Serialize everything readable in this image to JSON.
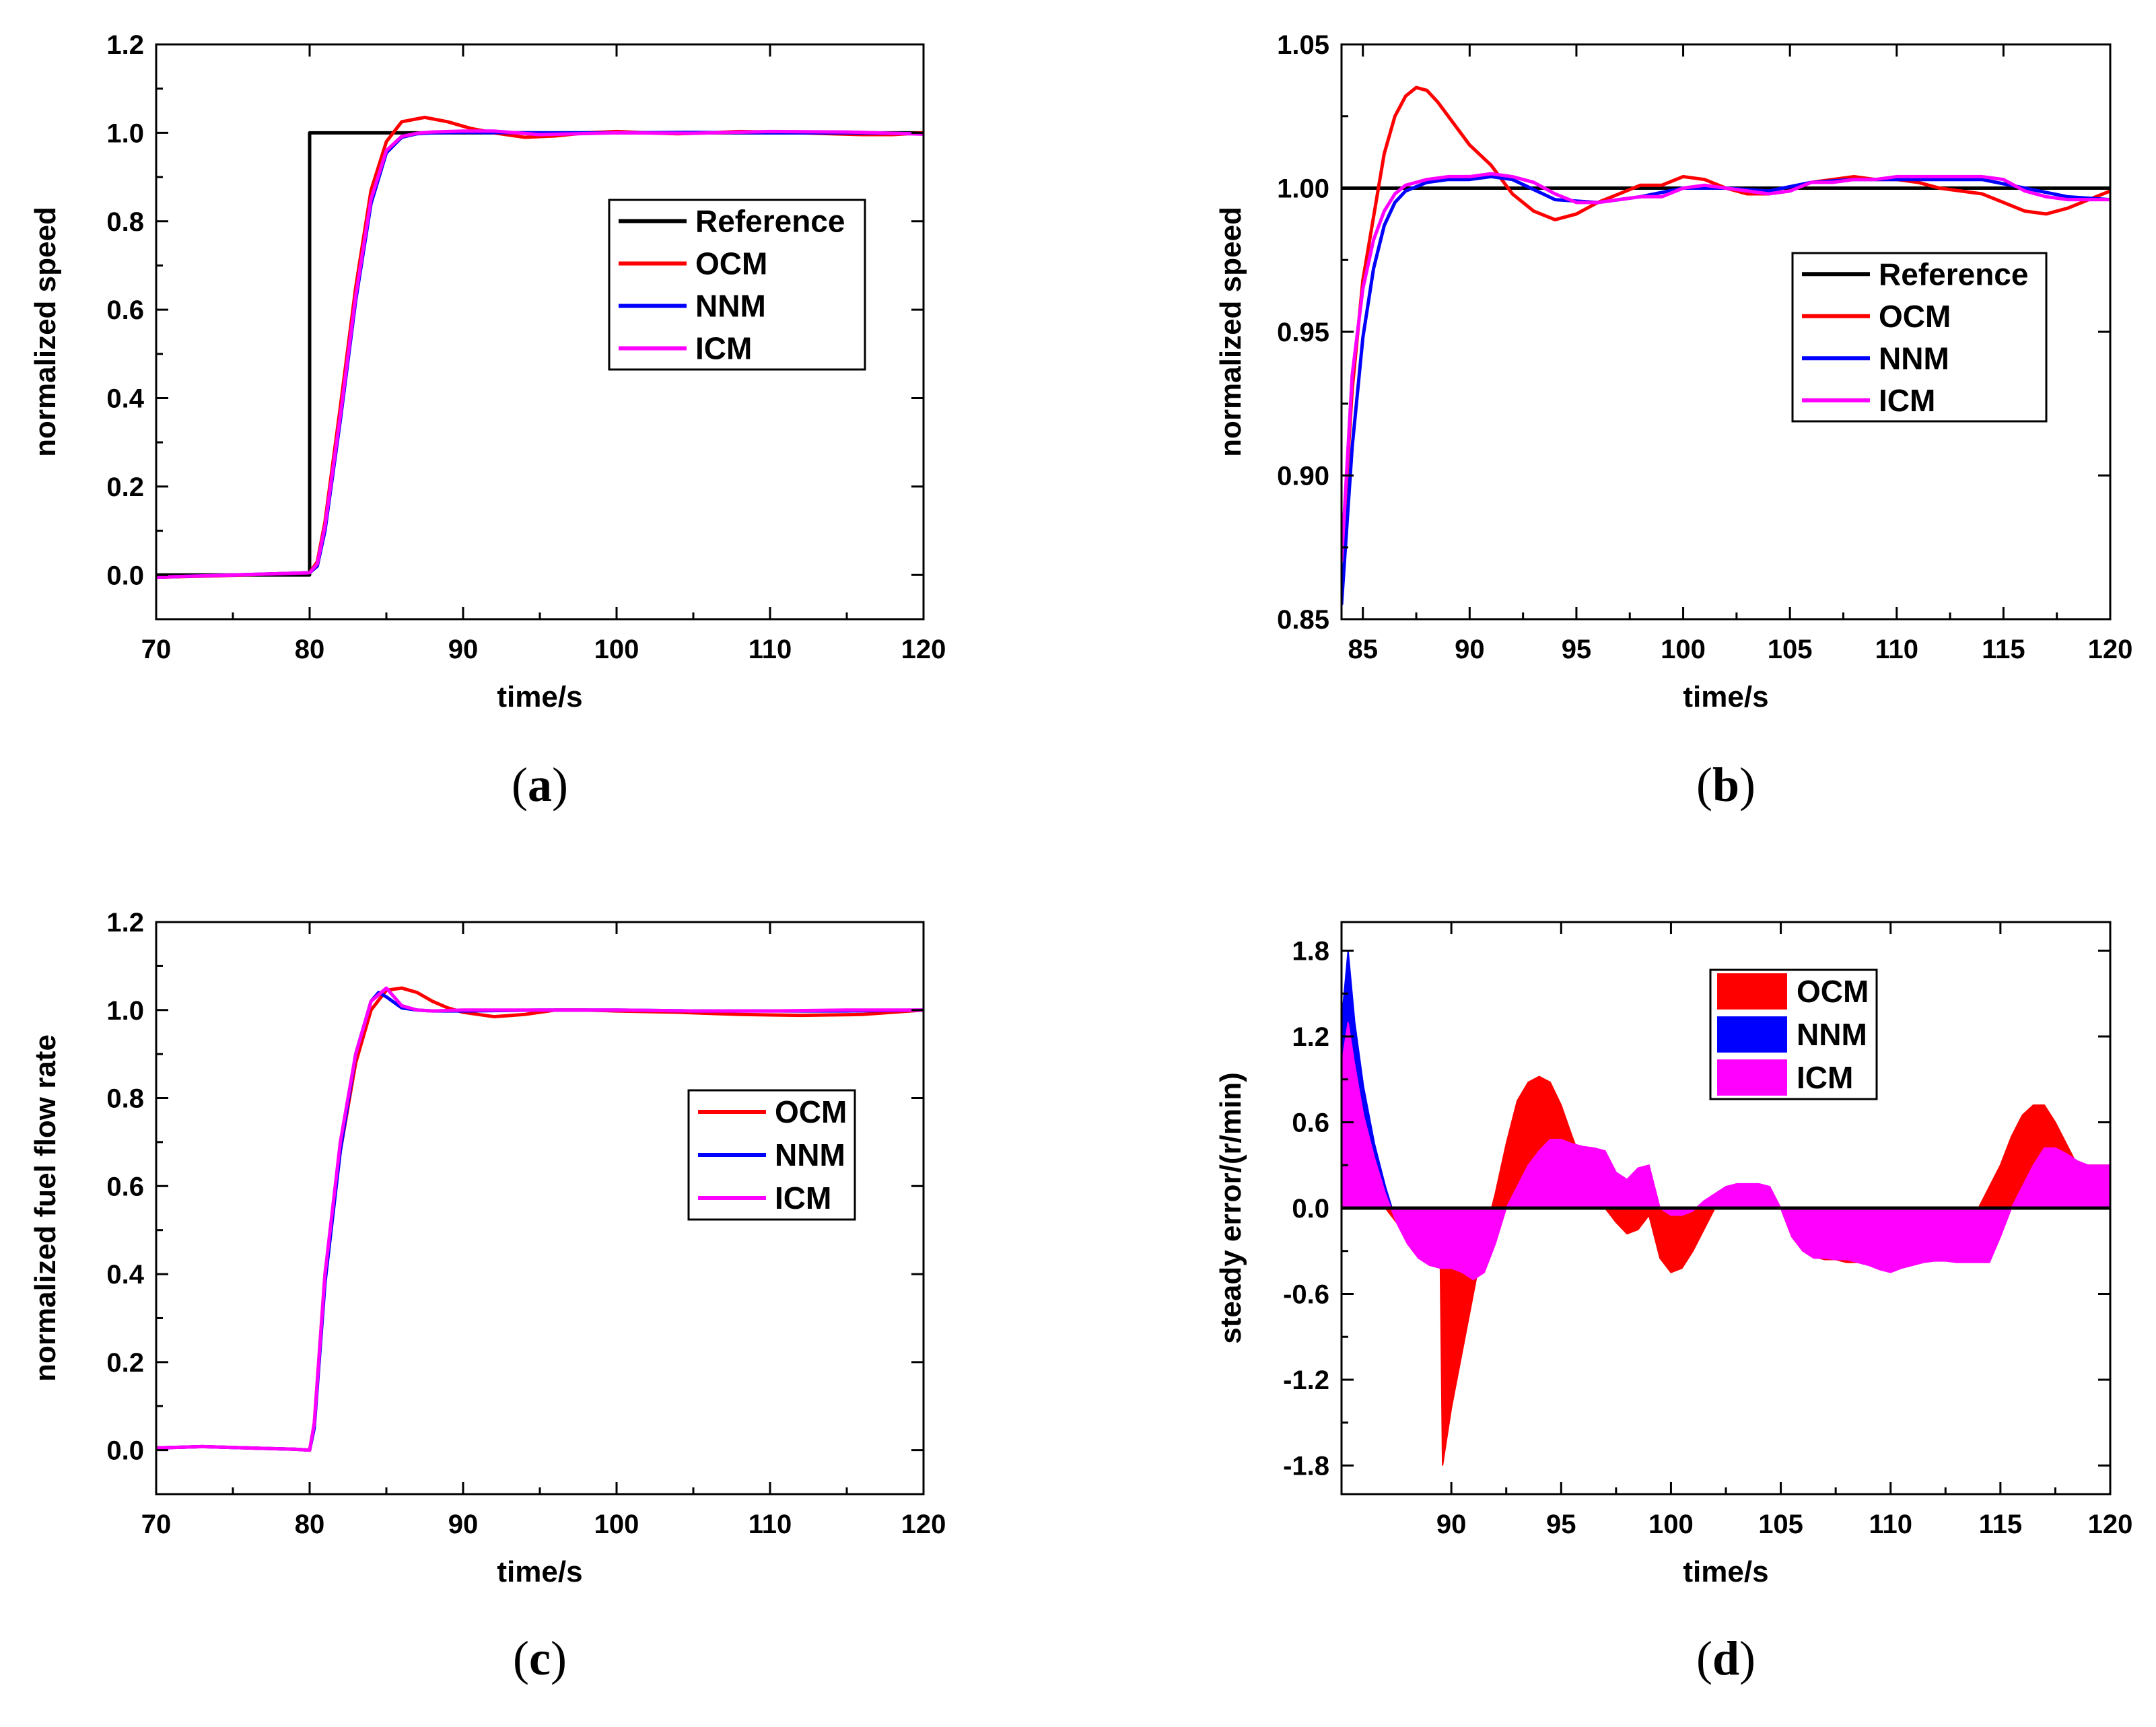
{
  "colors": {
    "reference": "#000000",
    "ocm": "#ff0000",
    "nnm": "#0000ff",
    "icm": "#ff00ff",
    "axis": "#000000"
  },
  "chart_data": [
    {
      "type": "line",
      "panel_label": "(a)",
      "caption_letter": "a",
      "xlabel": "time/s",
      "ylabel": "normalized speed",
      "xlim": [
        70,
        120
      ],
      "ylim": [
        -0.1,
        1.2
      ],
      "xticks": [
        70,
        80,
        90,
        100,
        110,
        120
      ],
      "xtick_labels": [
        "70",
        "80",
        "90",
        "100",
        "110",
        "120"
      ],
      "yticks": [
        0.0,
        0.2,
        0.4,
        0.6,
        0.8,
        1.0,
        1.2
      ],
      "ytick_labels": [
        "0.0",
        "0.2",
        "0.4",
        "0.6",
        "0.8",
        "1.0",
        "1.2"
      ],
      "legend_position": "center-right",
      "series": [
        {
          "name": "Reference",
          "color_key": "reference",
          "x": [
            70,
            80,
            80,
            120
          ],
          "y": [
            0,
            0,
            1.0,
            1.0
          ]
        },
        {
          "name": "OCM",
          "color_key": "ocm",
          "x": [
            70,
            74,
            78,
            80,
            80.5,
            81,
            82,
            83,
            84,
            85,
            86,
            87.5,
            89,
            90.5,
            92,
            94,
            96,
            98,
            100,
            102,
            104,
            106,
            108,
            110,
            112,
            114,
            116,
            118,
            120
          ],
          "y": [
            -0.005,
            -0.002,
            0.003,
            0.005,
            0.03,
            0.12,
            0.38,
            0.65,
            0.87,
            0.98,
            1.025,
            1.035,
            1.025,
            1.01,
            1.0,
            0.99,
            0.993,
            1.0,
            1.003,
            1.0,
            0.998,
            1.0,
            1.003,
            1.002,
            1.0,
            0.998,
            0.996,
            0.996,
            1.0
          ]
        },
        {
          "name": "NNM",
          "color_key": "nnm",
          "x": [
            70,
            78,
            80,
            80.5,
            81,
            82,
            83,
            84,
            85,
            86,
            87,
            88,
            90,
            95,
            100,
            105,
            110,
            115,
            120
          ],
          "y": [
            -0.005,
            0.003,
            0.005,
            0.02,
            0.1,
            0.35,
            0.62,
            0.84,
            0.955,
            0.99,
            0.998,
            1.0,
            1.001,
            1.0,
            1.0,
            1.001,
            1.0,
            1.0,
            0.998
          ]
        },
        {
          "name": "ICM",
          "color_key": "icm",
          "x": [
            70,
            78,
            80,
            80.5,
            81,
            82,
            83,
            84,
            85,
            86,
            87,
            88,
            90,
            92,
            95,
            100,
            105,
            110,
            115,
            120
          ],
          "y": [
            -0.005,
            0.003,
            0.005,
            0.025,
            0.11,
            0.36,
            0.63,
            0.85,
            0.96,
            0.992,
            0.999,
            1.002,
            1.004,
            1.004,
            0.996,
            1.0,
            0.999,
            1.003,
            1.002,
            0.997
          ]
        }
      ],
      "legend": [
        "Reference",
        "OCM",
        "NNM",
        "ICM"
      ]
    },
    {
      "type": "line",
      "panel_label": "(b)",
      "caption_letter": "b",
      "xlabel": "time/s",
      "ylabel": "normalized speed",
      "xlim": [
        84,
        120
      ],
      "ylim": [
        0.85,
        1.05
      ],
      "xticks": [
        85,
        90,
        95,
        100,
        105,
        110,
        115,
        120
      ],
      "xtick_labels": [
        "85",
        "90",
        "95",
        "100",
        "105",
        "110",
        "115",
        "120"
      ],
      "yticks": [
        0.85,
        0.9,
        0.95,
        1.0,
        1.05
      ],
      "ytick_labels": [
        "0.85",
        "0.90",
        "0.95",
        "1.00",
        "1.05"
      ],
      "legend_position": "center-right",
      "series": [
        {
          "name": "Reference",
          "color_key": "reference",
          "x": [
            84,
            120
          ],
          "y": [
            1.0,
            1.0
          ]
        },
        {
          "name": "OCM",
          "color_key": "ocm",
          "x": [
            84,
            84.5,
            85,
            85.5,
            86,
            86.5,
            87,
            87.5,
            88,
            88.5,
            89,
            89.5,
            90,
            91,
            92,
            93,
            94,
            95,
            96,
            97,
            98,
            99,
            100,
            101,
            102,
            103,
            104,
            105,
            106,
            107,
            108,
            109,
            110,
            111,
            112,
            113,
            114,
            115,
            116,
            117,
            118,
            119,
            120
          ],
          "y": [
            0.87,
            0.93,
            0.968,
            0.99,
            1.012,
            1.025,
            1.032,
            1.035,
            1.034,
            1.03,
            1.025,
            1.02,
            1.015,
            1.008,
            0.998,
            0.992,
            0.989,
            0.991,
            0.995,
            0.998,
            1.001,
            1.001,
            1.004,
            1.003,
            1.0,
            0.998,
            0.998,
            0.999,
            1.002,
            1.003,
            1.004,
            1.003,
            1.003,
            1.002,
            1.0,
            0.999,
            0.998,
            0.995,
            0.992,
            0.991,
            0.993,
            0.996,
            0.999
          ]
        },
        {
          "name": "NNM",
          "color_key": "nnm",
          "x": [
            84,
            84.5,
            85,
            85.5,
            86,
            86.5,
            87,
            88,
            89,
            90,
            91,
            92,
            94,
            96,
            98,
            100,
            102,
            104,
            106,
            108,
            110,
            112,
            114,
            116,
            118,
            120
          ],
          "y": [
            0.855,
            0.91,
            0.948,
            0.972,
            0.987,
            0.995,
            0.999,
            1.002,
            1.003,
            1.003,
            1.004,
            1.003,
            0.996,
            0.995,
            0.997,
            1.0,
            1.0,
            0.999,
            1.002,
            1.003,
            1.003,
            1.003,
            1.003,
            1.0,
            0.997,
            0.996
          ]
        },
        {
          "name": "ICM",
          "color_key": "icm",
          "x": [
            84,
            84.5,
            85,
            85.5,
            86,
            86.5,
            87,
            88,
            89,
            90,
            91,
            92,
            93,
            94,
            95,
            96,
            97,
            98,
            99,
            100,
            101,
            102,
            103,
            104,
            105,
            106,
            107,
            108,
            109,
            110,
            111,
            112,
            113,
            114,
            115,
            116,
            117,
            118,
            119,
            120
          ],
          "y": [
            0.87,
            0.935,
            0.965,
            0.982,
            0.992,
            0.998,
            1.001,
            1.003,
            1.004,
            1.004,
            1.005,
            1.004,
            1.002,
            0.998,
            0.995,
            0.995,
            0.996,
            0.997,
            0.997,
            1.0,
            1.001,
            1.0,
            0.999,
            0.998,
            0.999,
            1.002,
            1.002,
            1.003,
            1.003,
            1.004,
            1.004,
            1.004,
            1.004,
            1.004,
            1.003,
            0.999,
            0.997,
            0.996,
            0.996,
            0.996
          ]
        }
      ],
      "legend": [
        "Reference",
        "OCM",
        "NNM",
        "ICM"
      ]
    },
    {
      "type": "line",
      "panel_label": "(c)",
      "caption_letter": "c",
      "xlabel": "time/s",
      "ylabel": "normalized fuel flow rate",
      "xlim": [
        70,
        120
      ],
      "ylim": [
        -0.1,
        1.2
      ],
      "xticks": [
        70,
        80,
        90,
        100,
        110,
        120
      ],
      "xtick_labels": [
        "70",
        "80",
        "90",
        "100",
        "110",
        "120"
      ],
      "yticks": [
        0.0,
        0.2,
        0.4,
        0.6,
        0.8,
        1.0,
        1.2
      ],
      "ytick_labels": [
        "0.0",
        "0.2",
        "0.4",
        "0.6",
        "0.8",
        "1.0",
        "1.2"
      ],
      "legend_position": "center-right",
      "series": [
        {
          "name": "OCM",
          "color_key": "ocm",
          "x": [
            70,
            73,
            76,
            79,
            80,
            80.3,
            81,
            82,
            83,
            84,
            85,
            86,
            87,
            88,
            89,
            90,
            92,
            94,
            96,
            98,
            100,
            104,
            108,
            112,
            116,
            120
          ],
          "y": [
            0.005,
            0.008,
            0.005,
            0.002,
            0.0,
            0.06,
            0.4,
            0.68,
            0.88,
            1.0,
            1.045,
            1.05,
            1.04,
            1.02,
            1.005,
            0.995,
            0.985,
            0.99,
            1.0,
            1.0,
            0.998,
            0.995,
            0.99,
            0.988,
            0.99,
            1.0
          ]
        },
        {
          "name": "NNM",
          "color_key": "nnm",
          "x": [
            70,
            73,
            76,
            79,
            80,
            80.3,
            81,
            82,
            83,
            84,
            84.5,
            85,
            86,
            87,
            88,
            90,
            95,
            100,
            105,
            110,
            115,
            120
          ],
          "y": [
            0.005,
            0.008,
            0.005,
            0.002,
            0.0,
            0.05,
            0.38,
            0.68,
            0.9,
            1.02,
            1.04,
            1.03,
            1.005,
            1.0,
            0.998,
            0.998,
            1.0,
            1.0,
            0.998,
            0.998,
            0.998,
            1.0
          ]
        },
        {
          "name": "ICM",
          "color_key": "icm",
          "x": [
            70,
            73,
            76,
            79,
            80,
            80.3,
            81,
            82,
            83,
            84,
            85,
            86,
            87,
            88,
            90,
            95,
            100,
            105,
            110,
            115,
            120
          ],
          "y": [
            0.005,
            0.008,
            0.005,
            0.002,
            0.0,
            0.06,
            0.4,
            0.7,
            0.9,
            1.02,
            1.05,
            1.01,
            1.0,
            0.998,
            1.0,
            1.0,
            1.0,
            0.998,
            0.998,
            1.0,
            1.0
          ]
        }
      ],
      "legend": [
        "OCM",
        "NNM",
        "ICM"
      ]
    },
    {
      "type": "area",
      "panel_label": "(d)",
      "caption_letter": "d",
      "xlabel": "time/s",
      "ylabel": "steady error/(r/min)",
      "xlim": [
        85,
        120
      ],
      "ylim": [
        -2.0,
        2.0
      ],
      "xticks": [
        90,
        95,
        100,
        105,
        110,
        115,
        120
      ],
      "xtick_labels": [
        "90",
        "95",
        "100",
        "105",
        "110",
        "115",
        "120"
      ],
      "yticks": [
        -1.8,
        -1.2,
        -0.6,
        0.0,
        0.6,
        1.2,
        1.8
      ],
      "ytick_labels": [
        "-1.8",
        "-1.2",
        "-0.6",
        "0.0",
        "0.6",
        "1.2",
        "1.8"
      ],
      "legend_position": "top-center",
      "series": [
        {
          "name": "OCM",
          "color_key": "ocm",
          "x": [
            85,
            85.5,
            86,
            86.5,
            87,
            87.5,
            88,
            88.5,
            89,
            89.5,
            89.6,
            90,
            90.5,
            91,
            91.5,
            92,
            92.5,
            93,
            93.5,
            94,
            94.5,
            95,
            95.5,
            96,
            96.5,
            97,
            97.5,
            98,
            98.5,
            99,
            99.5,
            100,
            100.5,
            101,
            101.5,
            102,
            102.5,
            103,
            103.5,
            104,
            104.5,
            105,
            105.5,
            106,
            106.5,
            107,
            107.5,
            108,
            108.5,
            109,
            109.5,
            110,
            110.5,
            111,
            111.5,
            112,
            112.5,
            113,
            113.5,
            114,
            114.5,
            115,
            115.5,
            116,
            116.5,
            117,
            117.5,
            118,
            118.5,
            119,
            119.5,
            120
          ],
          "y": [
            0.9,
            0.6,
            0.3,
            0.1,
            0.0,
            -0.1,
            -0.2,
            -0.3,
            -0.35,
            -0.4,
            -1.8,
            -1.4,
            -1.0,
            -0.6,
            -0.2,
            0.1,
            0.45,
            0.75,
            0.88,
            0.92,
            0.88,
            0.72,
            0.5,
            0.3,
            0.12,
            0.0,
            -0.1,
            -0.18,
            -0.15,
            -0.05,
            -0.35,
            -0.45,
            -0.42,
            -0.3,
            -0.15,
            0.0,
            0.12,
            0.15,
            0.15,
            0.13,
            0.1,
            0.0,
            -0.2,
            -0.3,
            -0.34,
            -0.36,
            -0.36,
            -0.38,
            -0.38,
            -0.35,
            -0.34,
            -0.35,
            -0.34,
            -0.33,
            -0.34,
            -0.34,
            -0.35,
            -0.35,
            -0.1,
            0.0,
            0.15,
            0.3,
            0.5,
            0.65,
            0.72,
            0.72,
            0.6,
            0.45,
            0.3,
            0.3,
            0.3,
            0.3
          ]
        },
        {
          "name": "NNM",
          "color_key": "nnm",
          "x": [
            85,
            85.3,
            85.6,
            86,
            86.5,
            87,
            87.3
          ],
          "y": [
            1.3,
            1.8,
            1.3,
            0.85,
            0.45,
            0.15,
            0.0
          ]
        },
        {
          "name": "ICM",
          "color_key": "icm",
          "x": [
            85,
            85.3,
            85.6,
            86,
            86.5,
            87,
            87.5,
            88,
            88.5,
            89,
            89.5,
            90,
            90.5,
            91,
            91.5,
            92,
            92.5,
            93,
            93.5,
            94,
            94.5,
            95,
            95.5,
            96,
            96.5,
            97,
            97.5,
            98,
            98.5,
            99,
            99.5,
            100,
            100.5,
            101,
            101.5,
            102,
            102.5,
            103,
            103.5,
            104,
            104.5,
            105,
            105.5,
            106,
            106.5,
            107,
            107.5,
            108,
            108.5,
            109,
            109.5,
            110,
            110.5,
            111,
            111.5,
            112,
            112.5,
            113,
            113.5,
            114,
            114.5,
            115,
            115.5,
            116,
            116.5,
            117,
            117.5,
            118,
            118.5,
            119,
            119.5,
            120
          ],
          "y": [
            1.0,
            1.3,
            1.0,
            0.65,
            0.35,
            0.1,
            -0.1,
            -0.25,
            -0.35,
            -0.4,
            -0.42,
            -0.42,
            -0.45,
            -0.5,
            -0.45,
            -0.25,
            0.0,
            0.15,
            0.3,
            0.4,
            0.48,
            0.48,
            0.45,
            0.43,
            0.42,
            0.4,
            0.25,
            0.2,
            0.28,
            0.3,
            0.0,
            -0.05,
            -0.05,
            -0.02,
            0.05,
            0.1,
            0.15,
            0.17,
            0.17,
            0.17,
            0.15,
            0.0,
            -0.2,
            -0.3,
            -0.35,
            -0.35,
            -0.36,
            -0.36,
            -0.38,
            -0.4,
            -0.43,
            -0.45,
            -0.42,
            -0.4,
            -0.38,
            -0.37,
            -0.37,
            -0.38,
            -0.38,
            -0.38,
            -0.38,
            -0.2,
            0.0,
            0.15,
            0.3,
            0.42,
            0.42,
            0.38,
            0.33,
            0.3,
            0.3,
            0.3
          ]
        }
      ],
      "reference_line": {
        "y": 0
      },
      "legend": [
        "OCM",
        "NNM",
        "ICM"
      ]
    }
  ]
}
